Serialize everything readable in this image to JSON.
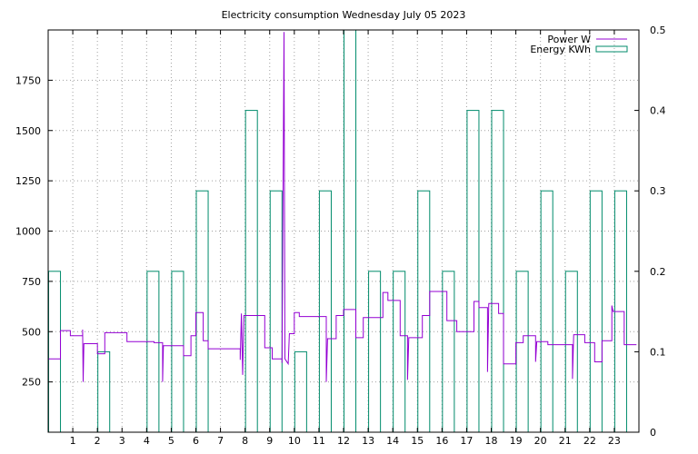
{
  "chart_data": {
    "type": "line",
    "title": "Electricity consumption Wednesday July 05 2023",
    "grid": true,
    "legend_position": "top-right",
    "x_ticks": [
      "1",
      "2",
      "3",
      "4",
      "5",
      "6",
      "7",
      "8",
      "9",
      "10",
      "11",
      "12",
      "13",
      "14",
      "15",
      "16",
      "17",
      "18",
      "19",
      "20",
      "21",
      "22",
      "23"
    ],
    "xlim": [
      0,
      24
    ],
    "y_left": {
      "range": [
        0,
        2000
      ],
      "ticks": [
        250,
        500,
        750,
        1000,
        1250,
        1500,
        1750
      ]
    },
    "y_right": {
      "range": [
        0,
        0.5
      ],
      "ticks": [
        "0",
        "0.1",
        "0.2",
        "0.3",
        "0.4",
        "0.5"
      ]
    },
    "series": [
      {
        "name": "Power W",
        "color": "#9400d3",
        "axis": "left",
        "style": "steps",
        "points": [
          [
            0.0,
            365
          ],
          [
            0.5,
            365
          ],
          [
            0.5,
            505
          ],
          [
            0.9,
            505
          ],
          [
            0.9,
            480
          ],
          [
            1.4,
            480
          ],
          [
            1.4,
            510
          ],
          [
            1.42,
            250
          ],
          [
            1.45,
            440
          ],
          [
            2.0,
            440
          ],
          [
            2.0,
            390
          ],
          [
            2.3,
            390
          ],
          [
            2.3,
            495
          ],
          [
            3.2,
            495
          ],
          [
            3.2,
            450
          ],
          [
            4.3,
            450
          ],
          [
            4.3,
            445
          ],
          [
            4.65,
            445
          ],
          [
            4.65,
            250
          ],
          [
            4.68,
            430
          ],
          [
            5.5,
            430
          ],
          [
            5.5,
            380
          ],
          [
            5.8,
            380
          ],
          [
            5.8,
            480
          ],
          [
            6.0,
            480
          ],
          [
            6.0,
            595
          ],
          [
            6.3,
            595
          ],
          [
            6.3,
            455
          ],
          [
            6.5,
            455
          ],
          [
            6.5,
            415
          ],
          [
            7.8,
            415
          ],
          [
            7.8,
            360
          ],
          [
            7.85,
            590
          ],
          [
            7.9,
            285
          ],
          [
            7.95,
            580
          ],
          [
            8.8,
            580
          ],
          [
            8.8,
            420
          ],
          [
            9.1,
            420
          ],
          [
            9.1,
            365
          ],
          [
            9.5,
            365
          ],
          [
            9.5,
            345
          ],
          [
            9.58,
            1990
          ],
          [
            9.62,
            365
          ],
          [
            9.75,
            340
          ],
          [
            9.8,
            490
          ],
          [
            10.0,
            490
          ],
          [
            10.0,
            595
          ],
          [
            10.2,
            595
          ],
          [
            10.2,
            575
          ],
          [
            11.3,
            575
          ],
          [
            11.3,
            250
          ],
          [
            11.35,
            465
          ],
          [
            11.7,
            465
          ],
          [
            11.7,
            580
          ],
          [
            12.0,
            580
          ],
          [
            12.0,
            610
          ],
          [
            12.5,
            610
          ],
          [
            12.5,
            470
          ],
          [
            12.8,
            470
          ],
          [
            12.8,
            570
          ],
          [
            13.6,
            570
          ],
          [
            13.6,
            695
          ],
          [
            13.8,
            695
          ],
          [
            13.8,
            655
          ],
          [
            14.3,
            655
          ],
          [
            14.3,
            480
          ],
          [
            14.6,
            480
          ],
          [
            14.6,
            260
          ],
          [
            14.65,
            470
          ],
          [
            15.2,
            470
          ],
          [
            15.2,
            580
          ],
          [
            15.5,
            580
          ],
          [
            15.5,
            700
          ],
          [
            16.2,
            700
          ],
          [
            16.2,
            555
          ],
          [
            16.6,
            555
          ],
          [
            16.6,
            500
          ],
          [
            17.3,
            500
          ],
          [
            17.3,
            650
          ],
          [
            17.5,
            650
          ],
          [
            17.5,
            620
          ],
          [
            17.85,
            620
          ],
          [
            17.85,
            300
          ],
          [
            17.9,
            640
          ],
          [
            18.3,
            640
          ],
          [
            18.3,
            590
          ],
          [
            18.5,
            590
          ],
          [
            18.5,
            340
          ],
          [
            19.0,
            340
          ],
          [
            19.0,
            445
          ],
          [
            19.3,
            445
          ],
          [
            19.3,
            480
          ],
          [
            19.8,
            480
          ],
          [
            19.8,
            350
          ],
          [
            19.85,
            450
          ],
          [
            20.3,
            450
          ],
          [
            20.3,
            435
          ],
          [
            21.3,
            435
          ],
          [
            21.3,
            265
          ],
          [
            21.35,
            485
          ],
          [
            21.8,
            485
          ],
          [
            21.8,
            445
          ],
          [
            22.2,
            445
          ],
          [
            22.2,
            350
          ],
          [
            22.5,
            350
          ],
          [
            22.5,
            455
          ],
          [
            22.9,
            455
          ],
          [
            22.9,
            630
          ],
          [
            22.95,
            600
          ],
          [
            23.4,
            600
          ],
          [
            23.4,
            435
          ],
          [
            23.9,
            435
          ]
        ]
      },
      {
        "name": "Energy KWh",
        "color": "#008b6b",
        "axis": "right",
        "style": "boxes",
        "bars": [
          {
            "x": 0,
            "value": 0.2
          },
          {
            "x": 2,
            "value": 0.1
          },
          {
            "x": 4,
            "value": 0.2
          },
          {
            "x": 5,
            "value": 0.2
          },
          {
            "x": 6,
            "value": 0.3
          },
          {
            "x": 8,
            "value": 0.4
          },
          {
            "x": 9,
            "value": 0.3
          },
          {
            "x": 10,
            "value": 0.1
          },
          {
            "x": 11,
            "value": 0.3
          },
          {
            "x": 12,
            "value": 0.5
          },
          {
            "x": 13,
            "value": 0.2
          },
          {
            "x": 14,
            "value": 0.2
          },
          {
            "x": 15,
            "value": 0.3
          },
          {
            "x": 16,
            "value": 0.2
          },
          {
            "x": 17,
            "value": 0.4
          },
          {
            "x": 18,
            "value": 0.4
          },
          {
            "x": 19,
            "value": 0.2
          },
          {
            "x": 20,
            "value": 0.3
          },
          {
            "x": 21,
            "value": 0.2
          },
          {
            "x": 22,
            "value": 0.3
          },
          {
            "x": 23,
            "value": 0.3
          }
        ]
      }
    ]
  }
}
